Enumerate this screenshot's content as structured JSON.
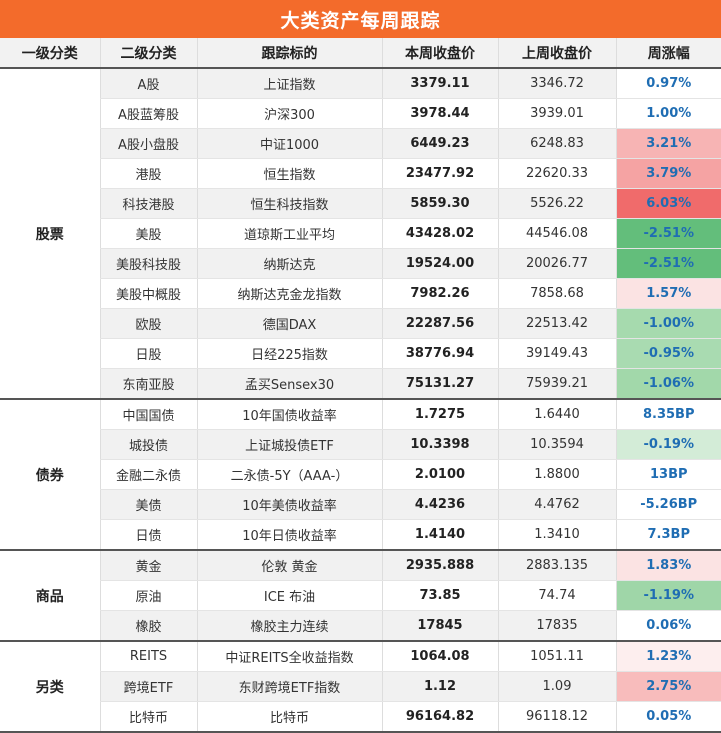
{
  "title": "大类资产每周跟踪",
  "headers": [
    "一级分类",
    "二级分类",
    "跟踪标的",
    "本周收盘价",
    "上周收盘价",
    "周涨幅"
  ],
  "groups": [
    {
      "name": "股票",
      "rows": [
        {
          "sub": "A股",
          "target": "上证指数",
          "close": "3379.11",
          "prev": "3346.72",
          "change": "0.97%",
          "bg": "#ffffff"
        },
        {
          "sub": "A股蓝筹股",
          "target": "沪深300",
          "close": "3978.44",
          "prev": "3939.01",
          "change": "1.00%",
          "bg": "#ffffff"
        },
        {
          "sub": "A股小盘股",
          "target": "中证1000",
          "close": "6449.23",
          "prev": "6248.83",
          "change": "3.21%",
          "bg": "#f7b4b4"
        },
        {
          "sub": "港股",
          "target": "恒生指数",
          "close": "23477.92",
          "prev": "22620.33",
          "change": "3.79%",
          "bg": "#f5a3a3"
        },
        {
          "sub": "科技港股",
          "target": "恒生科技指数",
          "close": "5859.30",
          "prev": "5526.22",
          "change": "6.03%",
          "bg": "#f06b6b"
        },
        {
          "sub": "美股",
          "target": "道琼斯工业平均",
          "close": "43428.02",
          "prev": "44546.08",
          "change": "-2.51%",
          "bg": "#63be7b"
        },
        {
          "sub": "美股科技股",
          "target": "纳斯达克",
          "close": "19524.00",
          "prev": "20026.77",
          "change": "-2.51%",
          "bg": "#63be7b"
        },
        {
          "sub": "美股中概股",
          "target": "纳斯达克金龙指数",
          "close": "7982.26",
          "prev": "7858.68",
          "change": "1.57%",
          "bg": "#fbe3e3"
        },
        {
          "sub": "欧股",
          "target": "德国DAX",
          "close": "22287.56",
          "prev": "22513.42",
          "change": "-1.00%",
          "bg": "#a6daae"
        },
        {
          "sub": "日股",
          "target": "日经225指数",
          "close": "38776.94",
          "prev": "39149.43",
          "change": "-0.95%",
          "bg": "#a9dbb1"
        },
        {
          "sub": "东南亚股",
          "target": "孟买Sensex30",
          "close": "75131.27",
          "prev": "75939.21",
          "change": "-1.06%",
          "bg": "#a2d8aa"
        }
      ]
    },
    {
      "name": "债券",
      "rows": [
        {
          "sub": "中国国债",
          "target": "10年国债收益率",
          "close": "1.7275",
          "prev": "1.6440",
          "change": "8.35BP",
          "bg": "#ffffff"
        },
        {
          "sub": "城投债",
          "target": "上证城投债ETF",
          "close": "10.3398",
          "prev": "10.3594",
          "change": "-0.19%",
          "bg": "#d3ecd7"
        },
        {
          "sub": "金融二永债",
          "target": "二永债-5Y（AAA-）",
          "close": "2.0100",
          "prev": "1.8800",
          "change": "13BP",
          "bg": "#ffffff"
        },
        {
          "sub": "美债",
          "target": "10年美债收益率",
          "close": "4.4236",
          "prev": "4.4762",
          "change": "-5.26BP",
          "bg": "#ffffff"
        },
        {
          "sub": "日债",
          "target": "10年日债收益率",
          "close": "1.4140",
          "prev": "1.3410",
          "change": "7.3BP",
          "bg": "#ffffff"
        }
      ]
    },
    {
      "name": "商品",
      "rows": [
        {
          "sub": "黄金",
          "target": "伦敦 黄金",
          "close": "2935.888",
          "prev": "2883.135",
          "change": "1.83%",
          "bg": "#fbe3e3"
        },
        {
          "sub": "原油",
          "target": "ICE 布油",
          "close": "73.85",
          "prev": "74.74",
          "change": "-1.19%",
          "bg": "#9fd6a8"
        },
        {
          "sub": "橡胶",
          "target": "橡胶主力连续",
          "close": "17845",
          "prev": "17835",
          "change": "0.06%",
          "bg": "#ffffff"
        }
      ]
    },
    {
      "name": "另类",
      "rows": [
        {
          "sub": "REITS",
          "target": "中证REITS全收益指数",
          "close": "1064.08",
          "prev": "1051.11",
          "change": "1.23%",
          "bg": "#fdeeee"
        },
        {
          "sub": "跨境ETF",
          "target": "东财跨境ETF指数",
          "close": "1.12",
          "prev": "1.09",
          "change": "2.75%",
          "bg": "#f8bcbc"
        },
        {
          "sub": "比特币",
          "target": "比特币",
          "close": "96164.82",
          "prev": "96118.12",
          "change": "0.05%",
          "bg": "#ffffff"
        }
      ]
    }
  ]
}
